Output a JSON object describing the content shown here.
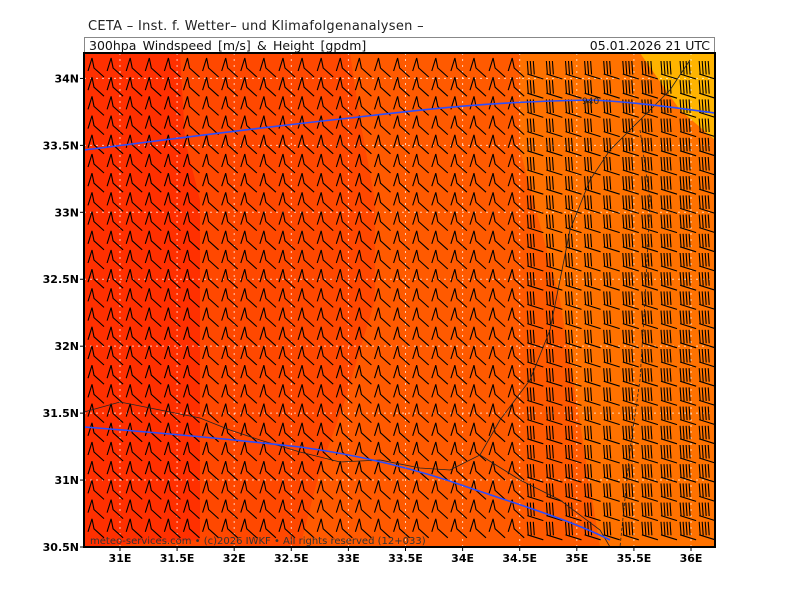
{
  "title_line": "CETA – Inst. f. Wetter– und Klimafolgenanalysen –",
  "header": {
    "product": "300hpa_Windspeed_[m/s]_&_Height_[gpdm]",
    "valid_time": "05.01.2026 21 UTC"
  },
  "map": {
    "lon_range": [
      30.685,
      36.21
    ],
    "lat_range": [
      30.5,
      34.19
    ],
    "lon_ticks": [
      "31E",
      "31.5E",
      "32E",
      "32.5E",
      "33E",
      "33.5E",
      "34E",
      "34.5E",
      "35E",
      "35.5E",
      "36E"
    ],
    "lon_values": [
      31,
      31.5,
      32,
      32.5,
      33,
      33.5,
      34,
      34.5,
      35,
      35.5,
      36
    ],
    "lat_ticks": [
      "34N",
      "33.5N",
      "33N",
      "32.5N",
      "32N",
      "31.5N",
      "31N",
      "30.5N"
    ],
    "lat_values": [
      34,
      33.5,
      33,
      32.5,
      32,
      31.5,
      31,
      30.5
    ],
    "contour_label": "940",
    "colors": {
      "strong": "#ff2400",
      "mid": "#ff5a00",
      "weak": "#ff8a00",
      "weakest": "#ffb400",
      "contour": "#2a4dff"
    }
  },
  "copyright": "meteo-services.com • (c)2026 IWKF • All rights reserved (12+033)"
}
